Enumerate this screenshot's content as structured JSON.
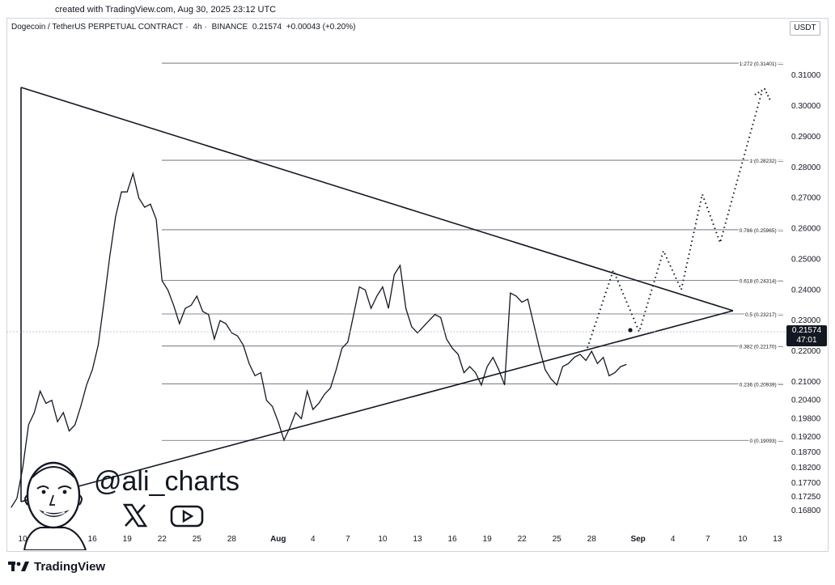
{
  "header": {
    "credit": "created with TradingView.com, Aug 30, 2025 23:12 UTC"
  },
  "legend": {
    "symbol": "Dogecoin / TetherUS PERPETUAL CONTRACT",
    "interval": "4h",
    "exchange": "BINANCE",
    "price": "0.21574",
    "change": "+0.00043 (+0.20%)"
  },
  "currency": "USDT",
  "price_tag": {
    "price": "0.21574",
    "countdown": "47:01"
  },
  "watermark": {
    "handle": "@ali_charts",
    "x_icon": "x-logo-icon",
    "youtube_icon": "youtube-play-icon",
    "avatar": "cartoon-avatar"
  },
  "brand": {
    "name": "TradingView",
    "icon": "tradingview-logo-icon"
  },
  "chart_data": {
    "type": "line",
    "ylim": [
      0.163,
      0.323
    ],
    "y_axis_ticks": [
      "0.31000",
      "0.30000",
      "0.29000",
      "0.28000",
      "0.27000",
      "0.26000",
      "0.25000",
      "0.24000",
      "0.23000",
      "0.22000",
      "0.21000",
      "0.20400",
      "0.19800",
      "0.19200",
      "0.18700",
      "0.18200",
      "0.17700",
      "0.17250",
      "0.16800"
    ],
    "x_axis_ticks": [
      "10",
      "13",
      "16",
      "19",
      "22",
      "25",
      "28",
      "Aug",
      "4",
      "7",
      "10",
      "13",
      "16",
      "19",
      "22",
      "25",
      "28",
      "Sep",
      "4",
      "7",
      "10",
      "13"
    ],
    "x_axis_note": "Dates from Jul 10 to Sep 13, 2025 (4h candles, close line)",
    "fib_levels": [
      {
        "label": "1.272 (0.31401)",
        "value": 0.31401
      },
      {
        "label": "1 (0.28232)",
        "value": 0.28232
      },
      {
        "label": "0.786 (0.25965)",
        "value": 0.25965
      },
      {
        "label": "0.618 (0.24314)",
        "value": 0.24314
      },
      {
        "label": "0.5 (0.23217)",
        "value": 0.23217
      },
      {
        "label": "0.382 (0.22170)",
        "value": 0.2217
      },
      {
        "label": "0.236 (0.20939)",
        "value": 0.20939
      },
      {
        "label": "0 (0.19093)",
        "value": 0.19093
      }
    ],
    "series": [
      {
        "x": [
          9.0,
          9.5,
          10.0,
          10.5,
          11.0,
          11.5,
          12.0,
          12.5,
          13.0,
          13.5,
          14.0,
          14.5,
          15.0,
          15.5,
          16.0,
          16.5,
          17.0,
          17.5,
          18.0,
          18.5,
          19.0,
          19.5,
          20.0,
          20.5,
          21.0,
          21.5,
          22.0,
          22.5,
          23.0,
          23.5,
          24.0,
          24.5,
          25.0,
          25.5,
          26.0,
          26.5,
          27.0,
          27.5,
          28.0,
          28.5,
          29.0,
          29.5,
          30.0,
          30.5,
          31.0,
          31.5,
          32.0,
          32.5,
          33.0,
          33.5,
          34.0,
          34.5,
          35.0,
          35.5,
          36.0,
          36.5,
          37.0,
          37.5,
          38.0,
          38.5,
          39.0,
          39.5,
          40.0,
          40.5,
          41.0,
          41.5,
          42.0,
          42.5,
          43.0,
          43.5,
          44.0,
          44.5,
          45.0,
          45.5,
          46.0,
          46.5,
          47.0,
          47.5,
          48.0,
          48.5,
          49.0,
          49.5,
          50.0,
          50.5,
          51.0,
          51.5,
          52.0,
          52.5,
          53.0,
          53.5,
          54.0,
          54.5,
          55.0,
          55.5,
          56.0,
          56.5,
          57.0,
          57.5,
          58.0,
          58.5,
          59.0,
          59.5,
          60.0,
          60.5,
          61.0,
          61.5,
          62.0
        ],
        "y": [
          0.169,
          0.172,
          0.182,
          0.196,
          0.2,
          0.207,
          0.203,
          0.204,
          0.197,
          0.2,
          0.194,
          0.196,
          0.202,
          0.209,
          0.214,
          0.222,
          0.236,
          0.251,
          0.264,
          0.272,
          0.272,
          0.278,
          0.27,
          0.267,
          0.268,
          0.263,
          0.243,
          0.24,
          0.235,
          0.229,
          0.234,
          0.235,
          0.238,
          0.233,
          0.232,
          0.224,
          0.23,
          0.229,
          0.226,
          0.225,
          0.222,
          0.216,
          0.212,
          0.213,
          0.204,
          0.202,
          0.197,
          0.191,
          0.195,
          0.2,
          0.198,
          0.207,
          0.201,
          0.203,
          0.206,
          0.208,
          0.214,
          0.221,
          0.223,
          0.232,
          0.241,
          0.24,
          0.234,
          0.238,
          0.241,
          0.234,
          0.245,
          0.248,
          0.234,
          0.228,
          0.226,
          0.228,
          0.23,
          0.232,
          0.231,
          0.224,
          0.221,
          0.219,
          0.213,
          0.215,
          0.213,
          0.209,
          0.215,
          0.218,
          0.214,
          0.209,
          0.239,
          0.238,
          0.236,
          0.237,
          0.229,
          0.221,
          0.214,
          0.211,
          0.209,
          0.215,
          0.216,
          0.218,
          0.219,
          0.217,
          0.22,
          0.216,
          0.218,
          0.212,
          0.213,
          0.215,
          0.2157
        ]
      }
    ]
  }
}
